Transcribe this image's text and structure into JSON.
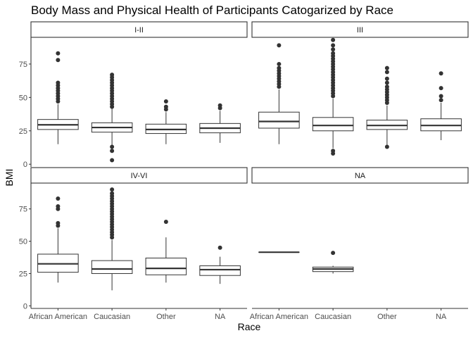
{
  "chart_data": {
    "type": "boxplot",
    "title": "Body Mass and Physical Health of Participants Catogarized by Race",
    "xlabel": "Race",
    "ylabel": "BMI",
    "categories": [
      "African American",
      "Caucasian",
      "Other",
      "NA"
    ],
    "y_ticks": [
      0,
      25,
      50,
      75
    ],
    "ylim": [
      -2,
      95
    ],
    "grid": false,
    "facet_layout": "2x2",
    "colors": {
      "box_fill": "#ffffff",
      "line": "#333333",
      "outlier": "#333333"
    },
    "panels": [
      {
        "label": "I-II",
        "boxes": [
          {
            "category": "African American",
            "whisker_low": 15,
            "q1": 26,
            "median": 29.5,
            "q3": 33.5,
            "whisker_high": 45,
            "outliers": [
              47,
              49,
              51,
              53,
              55,
              57,
              59,
              61,
              78,
              83
            ]
          },
          {
            "category": "Caucasian",
            "whisker_low": 13,
            "q1": 24,
            "median": 27.5,
            "q3": 31,
            "whisker_high": 42,
            "outliers": [
              3,
              10,
              13,
              43,
              45,
              47,
              49,
              51,
              53,
              55,
              57,
              59,
              61,
              63,
              65,
              67
            ]
          },
          {
            "category": "Other",
            "whisker_low": 15,
            "q1": 23,
            "median": 26,
            "q3": 30,
            "whisker_high": 39,
            "outliers": [
              41,
              43,
              47
            ]
          },
          {
            "category": "NA",
            "whisker_low": 16,
            "q1": 23.5,
            "median": 27,
            "q3": 30.5,
            "whisker_high": 40,
            "outliers": [
              42,
              44
            ]
          }
        ]
      },
      {
        "label": "III",
        "boxes": [
          {
            "category": "African American",
            "whisker_low": 15,
            "q1": 27,
            "median": 32,
            "q3": 39,
            "whisker_high": 56,
            "outliers": [
              58,
              60,
              62,
              64,
              66,
              68,
              70,
              72,
              75,
              89
            ]
          },
          {
            "category": "Caucasian",
            "whisker_low": 12,
            "q1": 25,
            "median": 29,
            "q3": 35,
            "whisker_high": 49,
            "outliers": [
              8,
              10,
              51,
              53,
              55,
              57,
              59,
              61,
              63,
              65,
              67,
              69,
              71,
              73,
              75,
              77,
              79,
              81,
              83,
              86,
              89,
              93
            ]
          },
          {
            "category": "Other",
            "whisker_low": 14,
            "q1": 26,
            "median": 29,
            "q3": 33,
            "whisker_high": 44,
            "outliers": [
              13,
              46,
              48,
              50,
              52,
              54,
              56,
              58,
              61,
              64,
              69,
              72
            ]
          },
          {
            "category": "NA",
            "whisker_low": 18,
            "q1": 25,
            "median": 29,
            "q3": 34,
            "whisker_high": 46,
            "outliers": [
              48,
              51,
              57,
              68
            ]
          }
        ]
      },
      {
        "label": "IV-VI",
        "boxes": [
          {
            "category": "African American",
            "whisker_low": 18,
            "q1": 26,
            "median": 32.5,
            "q3": 40,
            "whisker_high": 60,
            "outliers": [
              62,
              64,
              75,
              77,
              83
            ]
          },
          {
            "category": "Caucasian",
            "whisker_low": 12,
            "q1": 25,
            "median": 28.5,
            "q3": 35,
            "whisker_high": 51,
            "outliers": [
              53,
              55,
              57,
              59,
              61,
              63,
              65,
              67,
              69,
              71,
              73,
              75,
              77,
              79,
              81,
              83,
              85,
              87,
              90
            ]
          },
          {
            "category": "Other",
            "whisker_low": 18,
            "q1": 24,
            "median": 29,
            "q3": 37,
            "whisker_high": 53,
            "outliers": [
              65
            ]
          },
          {
            "category": "NA",
            "whisker_low": 17,
            "q1": 23.5,
            "median": 28,
            "q3": 31,
            "whisker_high": 38,
            "outliers": [
              45
            ]
          }
        ]
      },
      {
        "label": "NA",
        "boxes": [
          {
            "category": "African American",
            "whisker_low": 41.5,
            "q1": 41.5,
            "median": 41.5,
            "q3": 41.5,
            "whisker_high": 41.5,
            "outliers": []
          },
          {
            "category": "Caucasian",
            "whisker_low": 25,
            "q1": 26.5,
            "median": 28.5,
            "q3": 30,
            "whisker_high": 31,
            "outliers": [
              41
            ]
          }
        ]
      }
    ]
  }
}
